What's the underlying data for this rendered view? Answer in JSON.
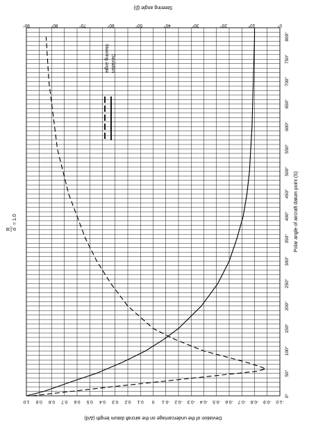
{
  "chart_data": {
    "type": "line",
    "title": "R/d = 1.0",
    "title_numerator": "R",
    "title_denominator": "d",
    "title_value": "= 1.0",
    "orientation": "rotated 90 degrees clockwise",
    "x_axis": {
      "label": "Polar angle of aircraft datum point (S)",
      "ticks": [
        "0°",
        "50°",
        "100°",
        "150°",
        "200°",
        "250°",
        "300°",
        "350°",
        "400°",
        "450°",
        "500°",
        "550°",
        "600°",
        "650°",
        "700°",
        "750°",
        "800°"
      ],
      "range": [
        0,
        820
      ],
      "grid_step": 10
    },
    "y_left": {
      "label": "Deviation of the undercarriage on the aircraft datum length (Δ/d)",
      "ticks": [
        "1.0",
        "0.9",
        "0.8",
        "0.7",
        "0.6",
        "0.5",
        "0.4",
        "0.3",
        "0.2",
        "0.1",
        "0",
        "-0.1",
        "-0.2",
        "-0.3",
        "-0.4",
        "-0.5",
        "-0.6",
        "-0.7",
        "-0.8",
        "-0.9",
        "-1.0"
      ],
      "range": [
        1.0,
        -1.0
      ]
    },
    "y_right": {
      "label": "Steering angle (β)",
      "ticks": [
        "90°",
        "80°",
        "70°",
        "60°",
        "50°",
        "40°",
        "30°",
        "20°",
        "10°",
        "0°"
      ],
      "range": [
        90,
        0
      ]
    },
    "legend": {
      "position": "upper-middle",
      "entries": [
        "Steering angle",
        "Deviation"
      ]
    },
    "series": [
      {
        "name": "Deviation",
        "axis": "left",
        "style": "solid",
        "x": [
          0,
          10,
          20,
          30,
          50,
          75,
          100,
          125,
          150,
          200,
          250,
          300,
          350,
          400,
          450,
          500,
          550,
          600,
          700,
          800,
          820
        ],
        "values": [
          1.0,
          0.86,
          0.76,
          0.66,
          0.45,
          0.24,
          0.06,
          -0.08,
          -0.2,
          -0.38,
          -0.51,
          -0.6,
          -0.66,
          -0.71,
          -0.74,
          -0.76,
          -0.77,
          -0.78,
          -0.79,
          -0.8,
          -0.8
        ]
      },
      {
        "name": "Steering angle",
        "axis": "right",
        "style": "dashed",
        "x": [
          0,
          20,
          40,
          55,
          60,
          65,
          75,
          100,
          125,
          150,
          200,
          250,
          300,
          350,
          400,
          450,
          500,
          550,
          600,
          700,
          800
        ],
        "values": [
          88,
          60,
          30,
          8,
          5,
          7,
          12,
          27,
          37,
          45,
          54,
          60,
          65,
          69,
          72,
          75,
          77,
          79,
          80,
          82,
          83
        ]
      }
    ]
  }
}
